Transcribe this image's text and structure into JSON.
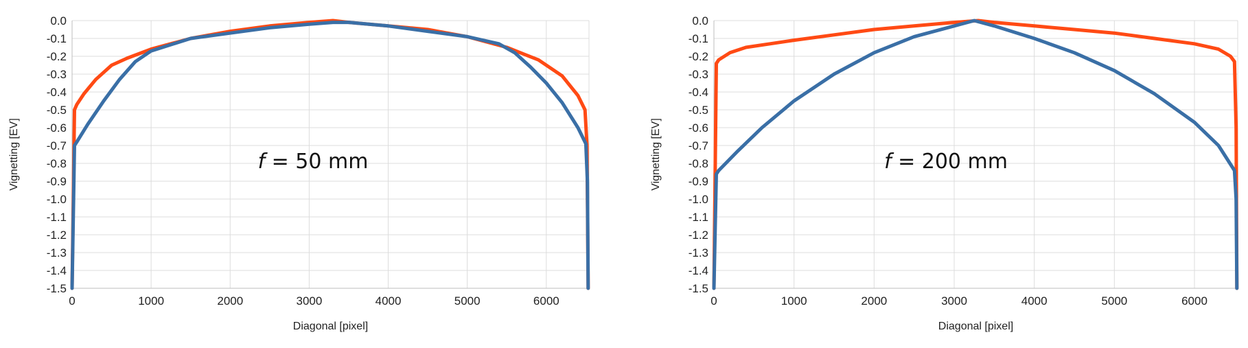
{
  "chart_data": [
    {
      "type": "line",
      "annotation": {
        "italic": "f",
        "rest": " = 50 mm"
      },
      "xlabel": "Diagonal [pixel]",
      "ylabel": "Vignetting [EV]",
      "xlim": [
        0,
        6540
      ],
      "ylim": [
        -1.5,
        0.0
      ],
      "xticks": [
        "0",
        "1000",
        "2000",
        "3000",
        "4000",
        "5000",
        "6000"
      ],
      "yticks": [
        "0.0",
        "-0.1",
        "-0.2",
        "-0.3",
        "-0.4",
        "-0.5",
        "-0.6",
        "-0.7",
        "-0.8",
        "-0.9",
        "-1.0",
        "-1.1",
        "-1.2",
        "-1.3",
        "-1.4",
        "-1.5"
      ],
      "grid": true,
      "series": [
        {
          "color": "#ff4a14",
          "x": [
            0,
            30,
            60,
            150,
            300,
            500,
            700,
            1000,
            1500,
            2000,
            2500,
            3000,
            3300,
            3500,
            4000,
            4500,
            5000,
            5500,
            5900,
            6200,
            6400,
            6490,
            6515,
            6530
          ],
          "y": [
            -1.5,
            -0.5,
            -0.47,
            -0.41,
            -0.33,
            -0.25,
            -0.21,
            -0.16,
            -0.1,
            -0.06,
            -0.03,
            -0.01,
            0.0,
            -0.01,
            -0.03,
            -0.05,
            -0.09,
            -0.15,
            -0.22,
            -0.31,
            -0.42,
            -0.5,
            -0.7,
            -1.5
          ]
        },
        {
          "color": "#3a6fa6",
          "x": [
            0,
            30,
            60,
            200,
            400,
            600,
            800,
            1000,
            1500,
            2000,
            2500,
            3000,
            3300,
            3500,
            4000,
            4500,
            5000,
            5400,
            5600,
            5800,
            6000,
            6200,
            6400,
            6500,
            6520,
            6530
          ],
          "y": [
            -1.5,
            -0.7,
            -0.68,
            -0.58,
            -0.45,
            -0.33,
            -0.23,
            -0.17,
            -0.1,
            -0.07,
            -0.04,
            -0.02,
            -0.01,
            -0.01,
            -0.03,
            -0.06,
            -0.09,
            -0.13,
            -0.18,
            -0.26,
            -0.35,
            -0.46,
            -0.6,
            -0.69,
            -0.9,
            -1.5
          ]
        }
      ]
    },
    {
      "type": "line",
      "annotation": {
        "italic": "f",
        "rest": " = 200 mm"
      },
      "xlabel": "Diagonal [pixel]",
      "ylabel": "Vignetting [EV]",
      "xlim": [
        0,
        6540
      ],
      "ylim": [
        -1.5,
        0.0
      ],
      "xticks": [
        "0",
        "1000",
        "2000",
        "3000",
        "4000",
        "5000",
        "6000"
      ],
      "yticks": [
        "0.0",
        "-0.1",
        "-0.2",
        "-0.3",
        "-0.4",
        "-0.5",
        "-0.6",
        "-0.7",
        "-0.8",
        "-0.9",
        "-1.0",
        "-1.1",
        "-1.2",
        "-1.3",
        "-1.4",
        "-1.5"
      ],
      "grid": true,
      "series": [
        {
          "color": "#ff4a14",
          "x": [
            0,
            30,
            60,
            200,
            400,
            700,
            1000,
            1500,
            2000,
            2500,
            3000,
            3300,
            3500,
            4000,
            4500,
            5000,
            5500,
            6000,
            6300,
            6450,
            6500,
            6520,
            6530
          ],
          "y": [
            -1.5,
            -0.24,
            -0.22,
            -0.18,
            -0.15,
            -0.13,
            -0.11,
            -0.08,
            -0.05,
            -0.03,
            -0.01,
            0.0,
            -0.01,
            -0.03,
            -0.05,
            -0.07,
            -0.1,
            -0.13,
            -0.16,
            -0.2,
            -0.23,
            -0.6,
            -1.5
          ]
        },
        {
          "color": "#3a6fa6",
          "x": [
            0,
            30,
            60,
            300,
            600,
            1000,
            1500,
            2000,
            2500,
            3000,
            3250,
            3500,
            4000,
            4500,
            5000,
            5500,
            6000,
            6300,
            6500,
            6520,
            6530
          ],
          "y": [
            -1.5,
            -0.86,
            -0.84,
            -0.73,
            -0.6,
            -0.45,
            -0.3,
            -0.18,
            -0.09,
            -0.03,
            0.0,
            -0.03,
            -0.1,
            -0.18,
            -0.28,
            -0.41,
            -0.57,
            -0.7,
            -0.84,
            -1.0,
            -1.5
          ]
        }
      ]
    }
  ]
}
